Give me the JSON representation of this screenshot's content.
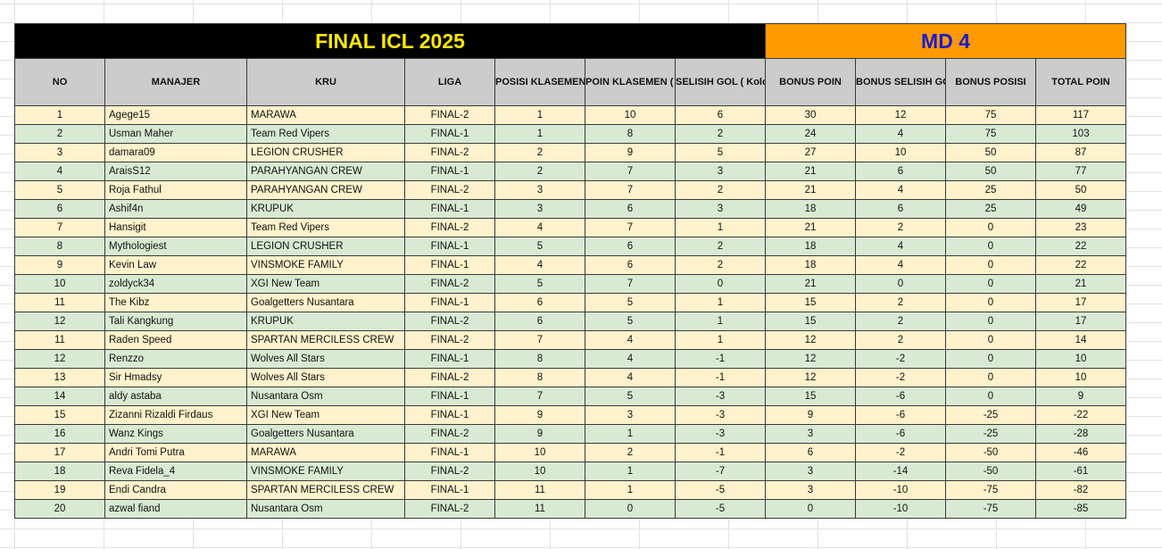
{
  "title": "FINAL ICL 2025",
  "matchday": "MD 4",
  "colors": {
    "title_bg": "#000000",
    "title_fg": "#ffea00",
    "md_bg": "#ff9900",
    "md_fg": "#1a1acf",
    "header_bg": "#cccccc",
    "row_odd": "#fff2cc",
    "row_even": "#d9ead3"
  },
  "headers": [
    "NO",
    "MANAJER",
    "KRU",
    "LIGA",
    "POSISI KLASEMEN ( Kolom A )",
    "POIN KLASEMEN ( Kolom J )",
    "SELISIH GOL ( Kolom N )",
    "BONUS POIN",
    "BONUS SELISIH GOL",
    "BONUS POSISI",
    "TOTAL POIN"
  ],
  "rows": [
    [
      "1",
      "Agege15",
      "MARAWA",
      "FINAL-2",
      "1",
      "10",
      "6",
      "30",
      "12",
      "75",
      "117"
    ],
    [
      "2",
      "Usman Maher",
      "Team Red Vipers",
      "FINAL-1",
      "1",
      "8",
      "2",
      "24",
      "4",
      "75",
      "103"
    ],
    [
      "3",
      "damara09",
      "LEGION CRUSHER",
      "FINAL-2",
      "2",
      "9",
      "5",
      "27",
      "10",
      "50",
      "87"
    ],
    [
      "4",
      "AraisS12",
      "PARAHYANGAN CREW",
      "FINAL-1",
      "2",
      "7",
      "3",
      "21",
      "6",
      "50",
      "77"
    ],
    [
      "5",
      "Roja Fathul",
      "PARAHYANGAN CREW",
      "FINAL-2",
      "3",
      "7",
      "2",
      "21",
      "4",
      "25",
      "50"
    ],
    [
      "6",
      "Ashif4n",
      "KRUPUK",
      "FINAL-1",
      "3",
      "6",
      "3",
      "18",
      "6",
      "25",
      "49"
    ],
    [
      "7",
      "Hansigit",
      "Team Red Vipers",
      "FINAL-2",
      "4",
      "7",
      "1",
      "21",
      "2",
      "0",
      "23"
    ],
    [
      "8",
      "Mythologiest",
      "LEGION CRUSHER",
      "FINAL-1",
      "5",
      "6",
      "2",
      "18",
      "4",
      "0",
      "22"
    ],
    [
      "9",
      "Kevin Law",
      "VINSMOKE FAMILY",
      "FINAL-1",
      "4",
      "6",
      "2",
      "18",
      "4",
      "0",
      "22"
    ],
    [
      "10",
      "zoldyck34",
      "XGI New Team",
      "FINAL-2",
      "5",
      "7",
      "0",
      "21",
      "0",
      "0",
      "21"
    ],
    [
      "11",
      "The Kibz",
      "Goalgetters Nusantara",
      "FINAL-1",
      "6",
      "5",
      "1",
      "15",
      "2",
      "0",
      "17"
    ],
    [
      "12",
      "Tali Kangkung",
      "KRUPUK",
      "FINAL-2",
      "6",
      "5",
      "1",
      "15",
      "2",
      "0",
      "17"
    ],
    [
      "11",
      "Raden Speed",
      "SPARTAN MERCILESS CREW",
      "FINAL-2",
      "7",
      "4",
      "1",
      "12",
      "2",
      "0",
      "14"
    ],
    [
      "12",
      "Renzzo",
      "Wolves All Stars",
      "FINAL-1",
      "8",
      "4",
      "-1",
      "12",
      "-2",
      "0",
      "10"
    ],
    [
      "13",
      "Sir Hmadsy",
      "Wolves All Stars",
      "FINAL-2",
      "8",
      "4",
      "-1",
      "12",
      "-2",
      "0",
      "10"
    ],
    [
      "14",
      "aldy astaba",
      "Nusantara Osm",
      "FINAL-1",
      "7",
      "5",
      "-3",
      "15",
      "-6",
      "0",
      "9"
    ],
    [
      "15",
      "Zizanni Rizaldi Firdaus",
      "XGI New Team",
      "FINAL-1",
      "9",
      "3",
      "-3",
      "9",
      "-6",
      "-25",
      "-22"
    ],
    [
      "16",
      "Wanz Kings",
      "Goalgetters Nusantara",
      "FINAL-2",
      "9",
      "1",
      "-3",
      "3",
      "-6",
      "-25",
      "-28"
    ],
    [
      "17",
      "Andri Tomi Putra",
      "MARAWA",
      "FINAL-1",
      "10",
      "2",
      "-1",
      "6",
      "-2",
      "-50",
      "-46"
    ],
    [
      "18",
      "Reva Fidela_4",
      "VINSMOKE FAMILY",
      "FINAL-2",
      "10",
      "1",
      "-7",
      "3",
      "-14",
      "-50",
      "-61"
    ],
    [
      "19",
      "Endi Candra",
      "SPARTAN MERCILESS CREW",
      "FINAL-1",
      "11",
      "1",
      "-5",
      "3",
      "-10",
      "-75",
      "-82"
    ],
    [
      "20",
      "azwal fiand",
      "Nusantara Osm",
      "FINAL-2",
      "11",
      "0",
      "-5",
      "0",
      "-10",
      "-75",
      "-85"
    ]
  ]
}
